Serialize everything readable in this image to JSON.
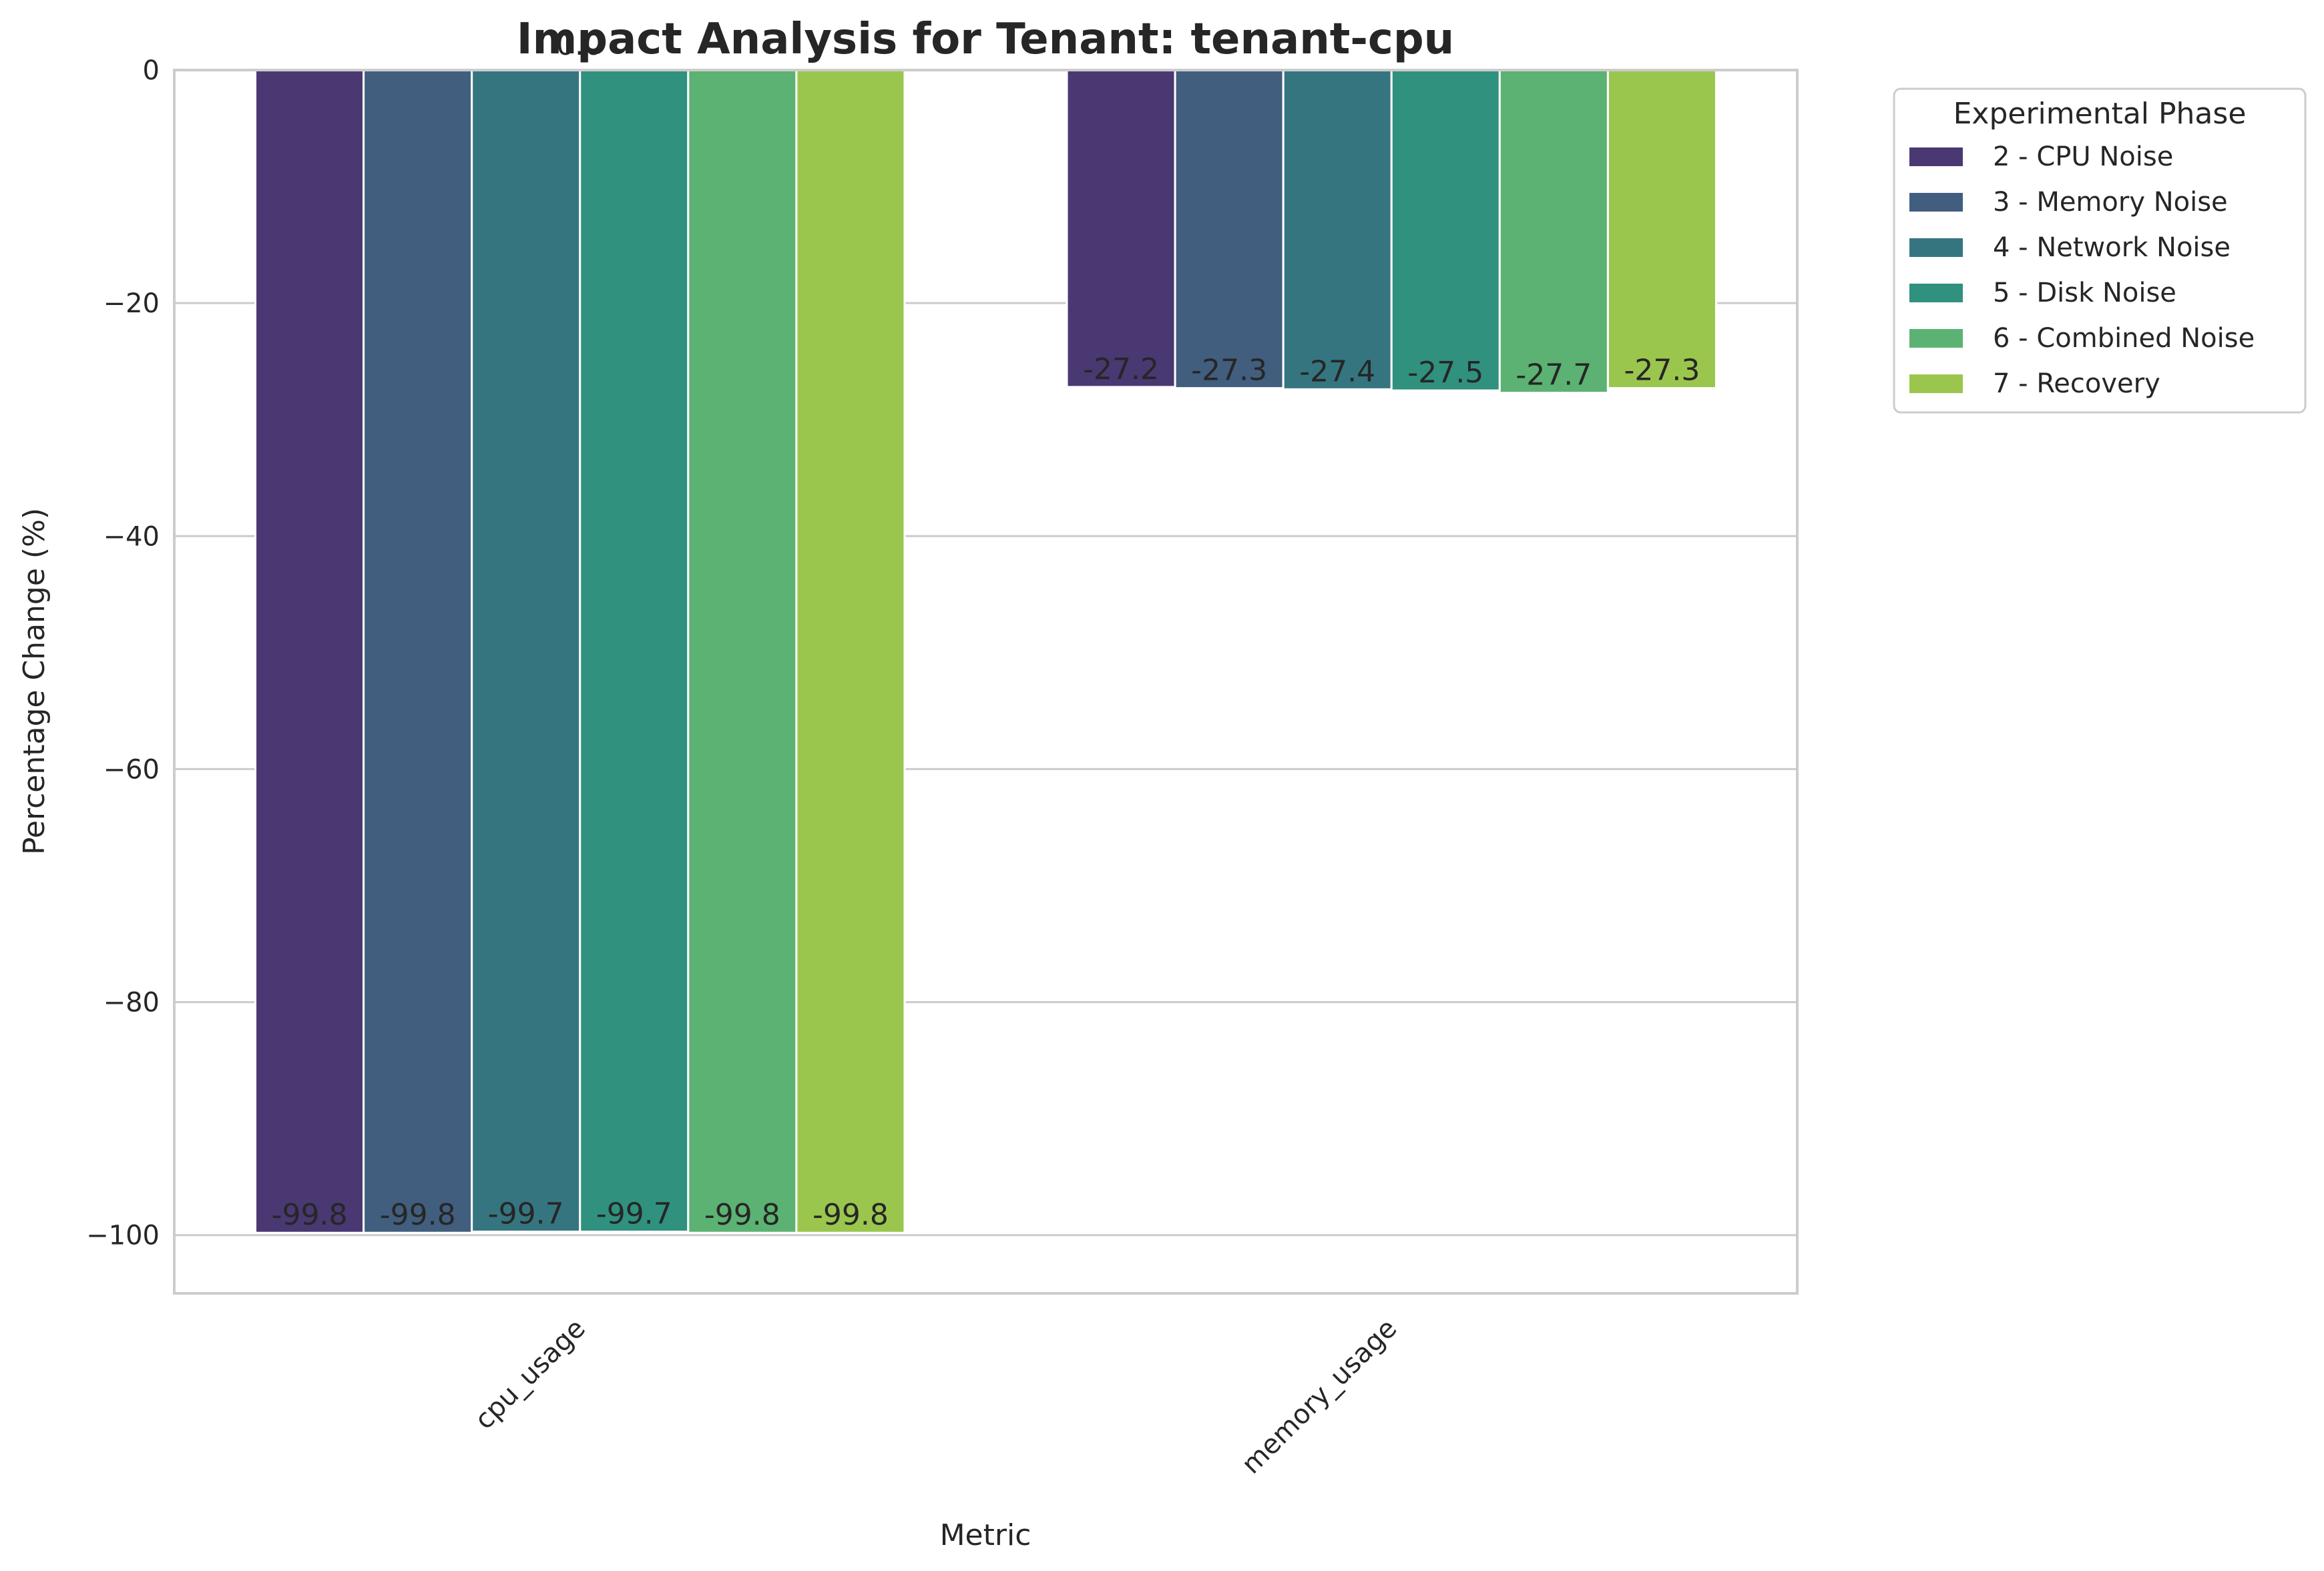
{
  "chart_data": {
    "type": "bar",
    "title": "Impact Analysis for Tenant: tenant-cpu",
    "xlabel": "Metric",
    "ylabel": "Percentage Change (%)",
    "ylim": [
      -105,
      0
    ],
    "yticks": [
      0,
      -20,
      -40,
      -60,
      -80,
      -100
    ],
    "ytick_labels": [
      "0",
      "−20",
      "−40",
      "−60",
      "−80",
      "−100"
    ],
    "categories": [
      "cpu_usage",
      "memory_usage"
    ],
    "grid": "horizontal",
    "legend_title": "Experimental Phase",
    "legend_position": "outside-top-right",
    "series": [
      {
        "name": "2 - CPU Noise",
        "color": "#4a3872",
        "values": [
          -99.8,
          -27.2
        ],
        "labels": [
          "-99.8",
          "-27.2"
        ]
      },
      {
        "name": "3 - Memory Noise",
        "color": "#415e7e",
        "values": [
          -99.8,
          -27.3
        ],
        "labels": [
          "-99.8",
          "-27.3"
        ]
      },
      {
        "name": "4 - Network Noise",
        "color": "#357580",
        "values": [
          -99.7,
          -27.4
        ],
        "labels": [
          "-99.7",
          "-27.4"
        ]
      },
      {
        "name": "5 - Disk Noise",
        "color": "#30917e",
        "values": [
          -99.7,
          -27.5
        ],
        "labels": [
          "-99.7",
          "-27.5"
        ]
      },
      {
        "name": "6 - Combined Noise",
        "color": "#5cb272",
        "values": [
          -99.8,
          -27.7
        ],
        "labels": [
          "-99.8",
          "-27.7"
        ]
      },
      {
        "name": "7 - Recovery",
        "color": "#9bc64e",
        "values": [
          -99.8,
          -27.3
        ],
        "labels": [
          "-99.8",
          "-27.3"
        ]
      }
    ],
    "extra_labels": [
      "0.0"
    ]
  }
}
